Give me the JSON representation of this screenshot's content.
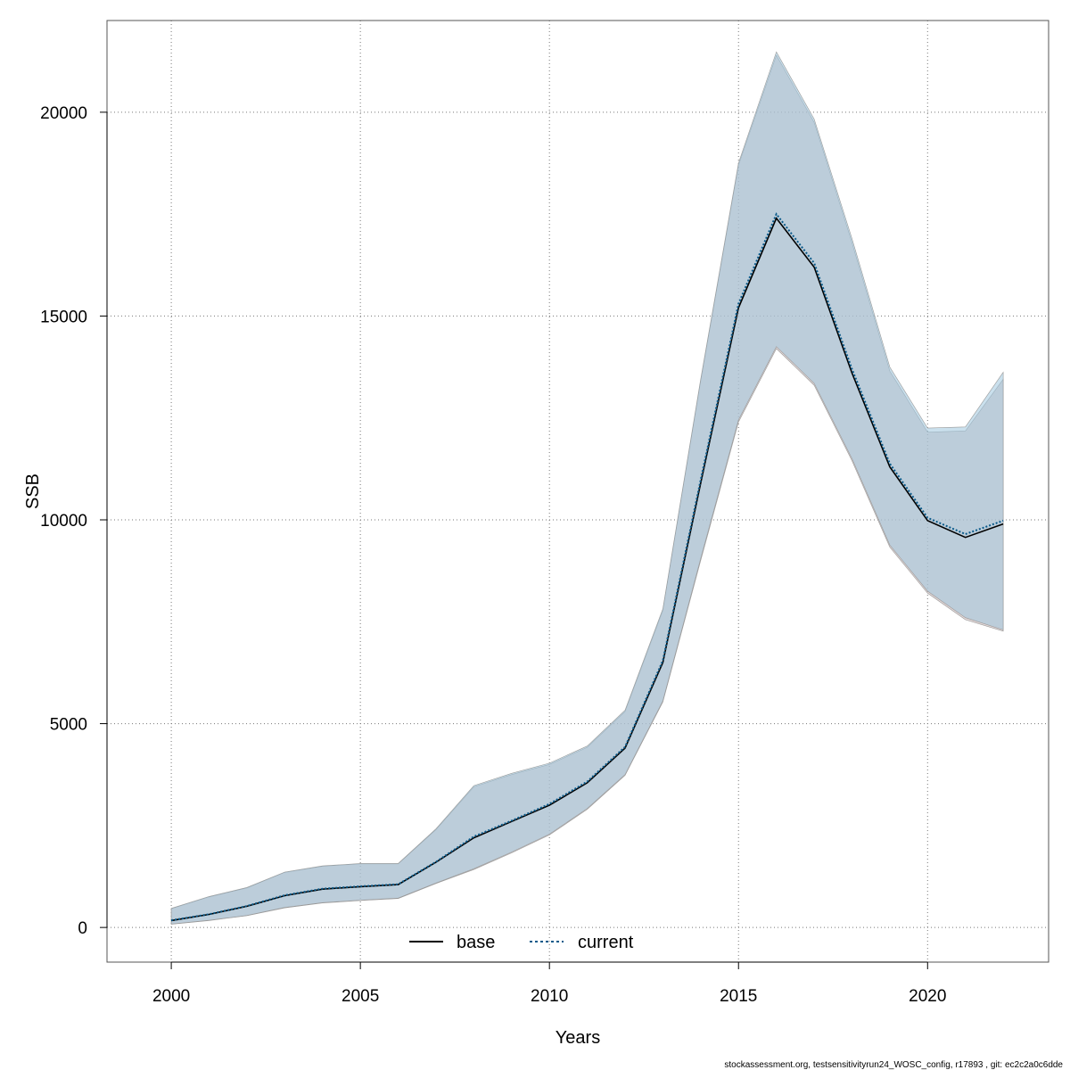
{
  "chart_data": {
    "type": "line",
    "xlabel": "Years",
    "ylabel": "SSB",
    "xlim": [
      1998.3,
      2023.2
    ],
    "ylim": [
      -850,
      22250
    ],
    "x_ticks": [
      2000,
      2005,
      2010,
      2015,
      2020
    ],
    "y_ticks": [
      0,
      5000,
      10000,
      15000,
      20000
    ],
    "grid": true,
    "legend_position": "bottom-center",
    "x": [
      2000,
      2001,
      2002,
      2003,
      2004,
      2005,
      2006,
      2007,
      2008,
      2009,
      2010,
      2011,
      2012,
      2013,
      2014,
      2015,
      2016,
      2017,
      2018,
      2019,
      2020,
      2021,
      2022
    ],
    "series": [
      {
        "name": "base",
        "style": "solid",
        "color": "#000000",
        "band_color": "#c8b4b4",
        "values": [
          170,
          320,
          520,
          780,
          940,
          1000,
          1050,
          1600,
          2200,
          2600,
          3000,
          3550,
          4400,
          6500,
          10900,
          15200,
          17400,
          16200,
          13600,
          11300,
          9980,
          9570,
          9900
        ],
        "lower": [
          80,
          170,
          290,
          480,
          600,
          660,
          710,
          1080,
          1420,
          1830,
          2270,
          2900,
          3730,
          5530,
          9000,
          12400,
          14200,
          13300,
          11450,
          9330,
          8200,
          7550,
          7270
        ],
        "upper": [
          460,
          750,
          970,
          1350,
          1500,
          1560,
          1560,
          2400,
          3450,
          3750,
          4000,
          4420,
          5300,
          7780,
          13400,
          18700,
          21400,
          19750,
          16800,
          13650,
          12150,
          12180,
          13450
        ]
      },
      {
        "name": "current",
        "style": "dotted",
        "color": "#0a5a8a",
        "band_color": "#9ec7de",
        "values": [
          175,
          325,
          525,
          790,
          950,
          1010,
          1060,
          1610,
          2230,
          2620,
          3030,
          3580,
          4430,
          6550,
          10980,
          15300,
          17500,
          16300,
          13700,
          11380,
          10050,
          9650,
          9980
        ],
        "lower": [
          85,
          175,
          295,
          490,
          610,
          670,
          720,
          1090,
          1440,
          1850,
          2290,
          2920,
          3750,
          5560,
          9050,
          12450,
          14250,
          13350,
          11500,
          9380,
          8250,
          7600,
          7300
        ],
        "upper": [
          470,
          760,
          980,
          1360,
          1510,
          1570,
          1570,
          2420,
          3480,
          3780,
          4030,
          4450,
          5330,
          7820,
          13450,
          18750,
          21480,
          19830,
          16900,
          13750,
          12250,
          12280,
          13620
        ]
      }
    ]
  },
  "footer": {
    "text": "stockassessment.org, testsensitivityrun24_WOSC_config, r17893 , git: ec2c2a0c6dde"
  }
}
